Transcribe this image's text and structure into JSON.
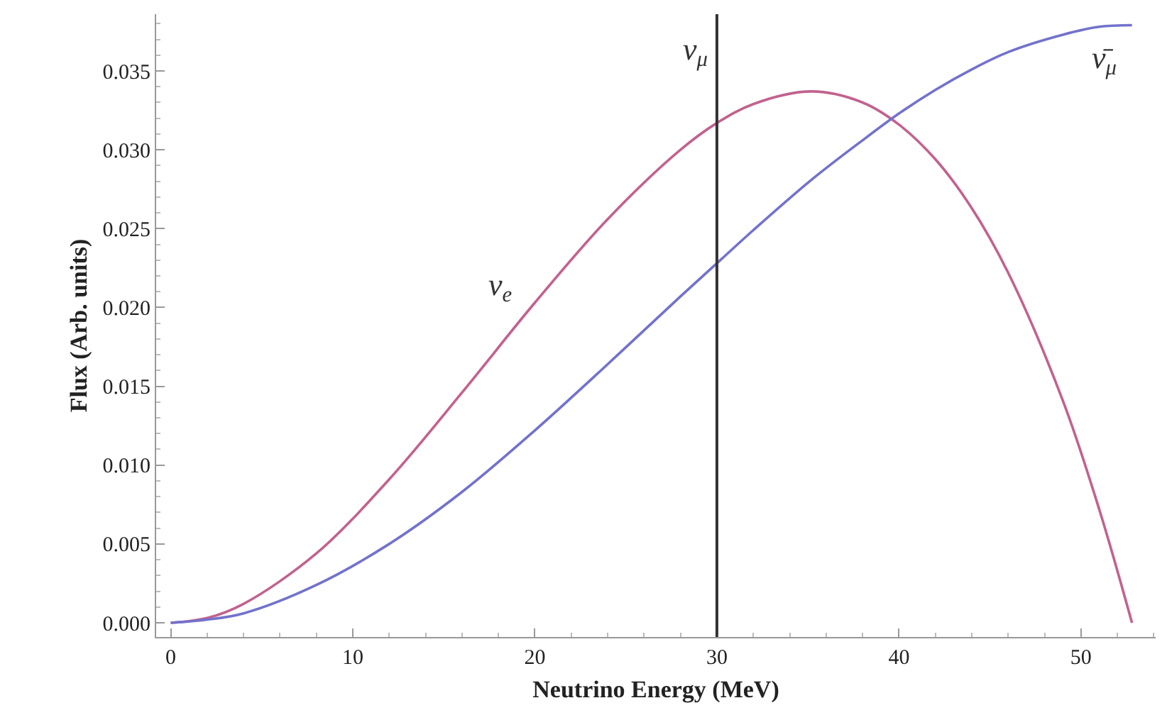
{
  "chart_data": {
    "type": "line",
    "xlabel": "Neutrino Energy (MeV)",
    "ylabel": "Flux (Arb. units)",
    "xlim": [
      -0.8,
      54.1
    ],
    "ylim": [
      -0.0009,
      0.0386
    ],
    "xticks": [
      0,
      10,
      20,
      30,
      40,
      50
    ],
    "yticks": [
      {
        "value": 0,
        "label": "0.000"
      },
      {
        "value": 0.005,
        "label": "0.005"
      },
      {
        "value": 0.01,
        "label": "0.010"
      },
      {
        "value": 0.015,
        "label": "0.015"
      },
      {
        "value": 0.02,
        "label": "0.020"
      },
      {
        "value": 0.025,
        "label": "0.025"
      },
      {
        "value": 0.03,
        "label": "0.030"
      },
      {
        "value": 0.035,
        "label": "0.035"
      }
    ],
    "x": [
      0,
      2,
      4,
      8,
      12,
      16,
      20,
      24,
      28,
      30,
      32,
      35.2,
      38,
      40,
      42,
      44,
      46,
      49,
      51,
      52.8
    ],
    "series": [
      {
        "name": "ν$_{e}$",
        "color": "#c2628e",
        "values": [
          0,
          0.0003,
          0.0012,
          0.0044,
          0.0091,
          0.0146,
          0.0203,
          0.0256,
          0.03,
          0.0317,
          0.0329,
          0.0337,
          0.033,
          0.0316,
          0.0294,
          0.0263,
          0.0222,
          0.0141,
          0.0072,
          0
        ]
      },
      {
        "name": "ν̄$_{μ}$",
        "color": "#7272cc",
        "values": [
          0,
          0.0002,
          0.0006,
          0.0024,
          0.005,
          0.0083,
          0.0122,
          0.0164,
          0.0207,
          0.0228,
          0.0249,
          0.0281,
          0.0306,
          0.0323,
          0.0338,
          0.0351,
          0.0362,
          0.0373,
          0.0378,
          0.0379
        ]
      }
    ],
    "ref_lines": [
      {
        "axis": "x",
        "value": 30,
        "label": "ν$_{μ}$",
        "color": "#333333"
      }
    ],
    "line_style": "solid",
    "marker": "none"
  }
}
